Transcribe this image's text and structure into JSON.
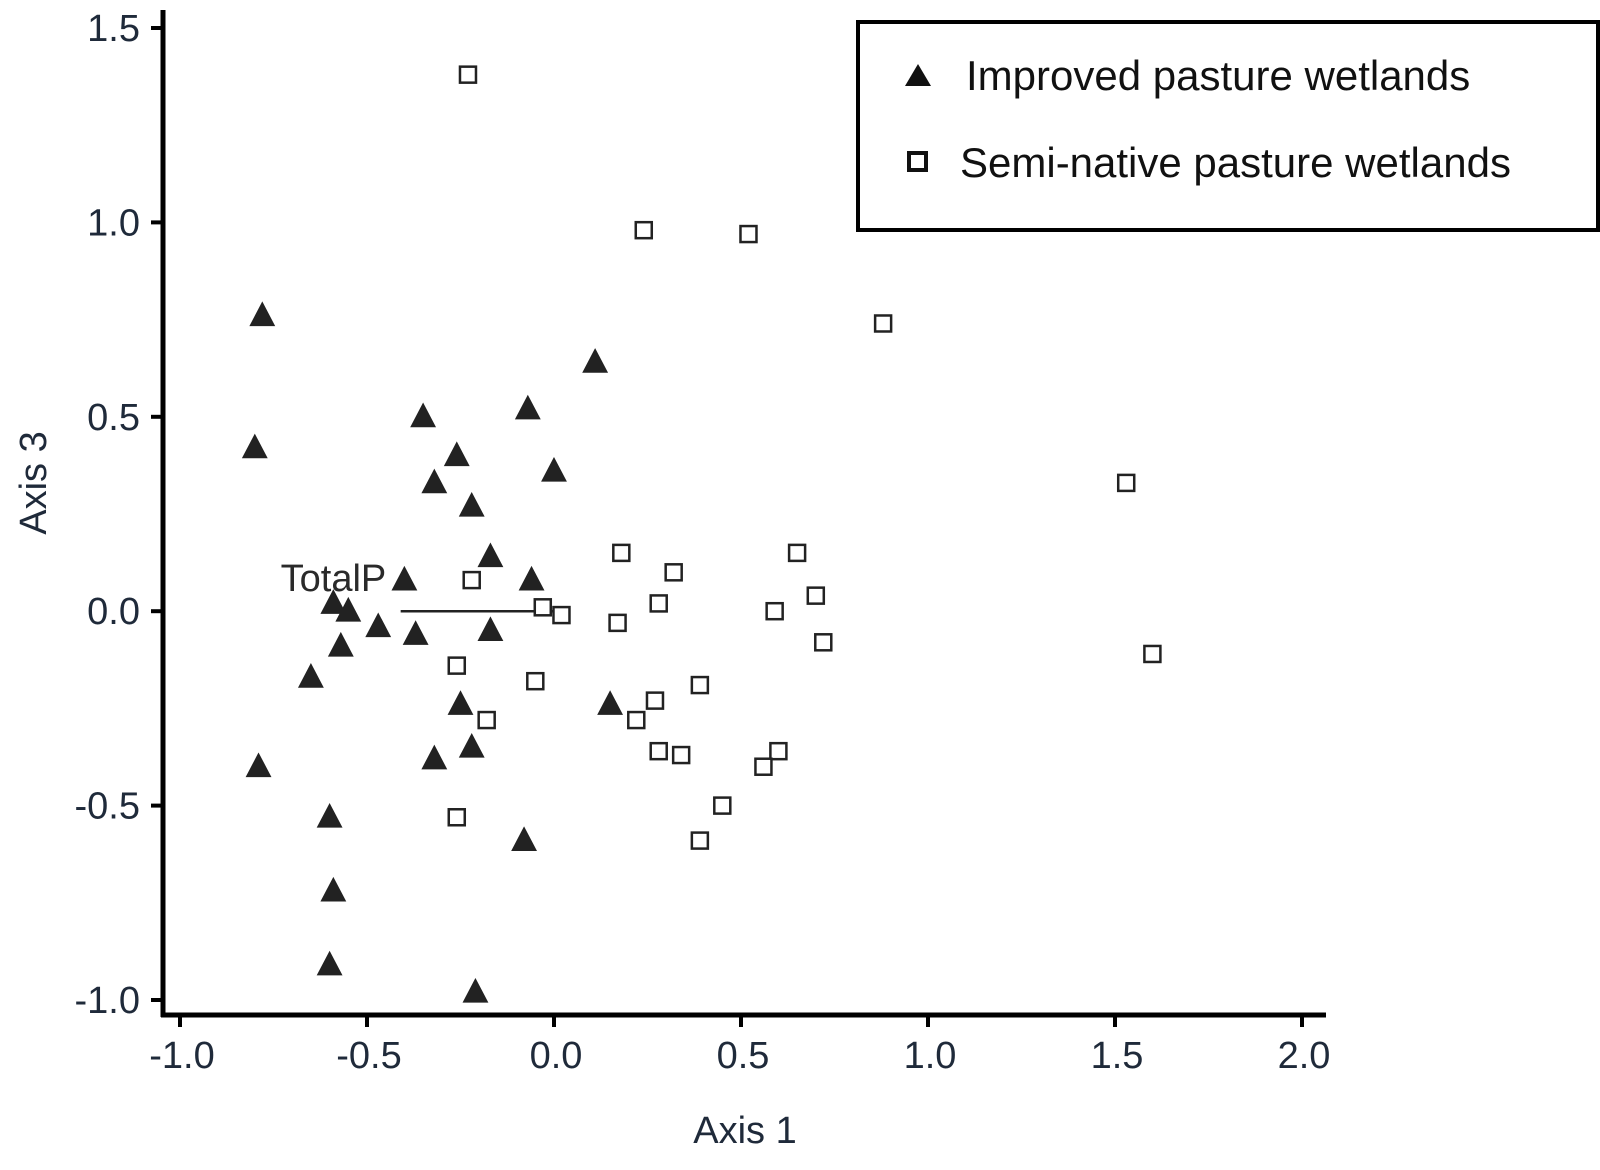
{
  "chart_data": {
    "type": "scatter",
    "title": "",
    "xlabel": "Axis 1",
    "ylabel": "Axis 3",
    "xlim": [
      -1.0,
      2.0
    ],
    "ylim": [
      -1.0,
      1.5
    ],
    "xticks": [
      "-1.0",
      "-0.5",
      "0.0",
      "0.5",
      "1.0",
      "1.5",
      "2.0"
    ],
    "yticks": [
      "-1.0",
      "-0.5",
      "0.0",
      "0.5",
      "1.0",
      "1.5"
    ],
    "xtick_values": [
      -1.0,
      -0.5,
      0.0,
      0.5,
      1.0,
      1.5,
      2.0
    ],
    "ytick_values": [
      -1.0,
      -0.5,
      0.0,
      0.5,
      1.0,
      1.5
    ],
    "grid": false,
    "legend_position": "top-right",
    "vector": {
      "label": "TotalP",
      "from": [
        0.0,
        0.0
      ],
      "to": [
        -0.41,
        0.0
      ]
    },
    "series": [
      {
        "name": "Improved pasture wetlands",
        "marker": "triangle-filled",
        "color": "#222222",
        "points": [
          [
            -0.78,
            0.76
          ],
          [
            -0.8,
            0.42
          ],
          [
            0.11,
            0.64
          ],
          [
            -0.07,
            0.52
          ],
          [
            -0.35,
            0.5
          ],
          [
            -0.26,
            0.4
          ],
          [
            0.0,
            0.36
          ],
          [
            -0.32,
            0.33
          ],
          [
            -0.22,
            0.27
          ],
          [
            -0.17,
            0.14
          ],
          [
            -0.4,
            0.08
          ],
          [
            -0.06,
            0.08
          ],
          [
            -0.59,
            0.02
          ],
          [
            -0.55,
            0.0
          ],
          [
            -0.47,
            -0.04
          ],
          [
            -0.37,
            -0.06
          ],
          [
            -0.17,
            -0.05
          ],
          [
            -0.57,
            -0.09
          ],
          [
            -0.65,
            -0.17
          ],
          [
            -0.25,
            -0.24
          ],
          [
            0.15,
            -0.24
          ],
          [
            -0.22,
            -0.35
          ],
          [
            -0.32,
            -0.38
          ],
          [
            -0.79,
            -0.4
          ],
          [
            -0.6,
            -0.53
          ],
          [
            -0.08,
            -0.59
          ],
          [
            -0.59,
            -0.72
          ],
          [
            -0.6,
            -0.91
          ],
          [
            -0.21,
            -0.98
          ]
        ]
      },
      {
        "name": "Semi-native pasture wetlands",
        "marker": "square-open",
        "color": "#222222",
        "points": [
          [
            -0.23,
            1.38
          ],
          [
            0.24,
            0.98
          ],
          [
            0.52,
            0.97
          ],
          [
            0.88,
            0.74
          ],
          [
            1.53,
            0.33
          ],
          [
            0.18,
            0.15
          ],
          [
            0.65,
            0.15
          ],
          [
            0.32,
            0.1
          ],
          [
            -0.22,
            0.08
          ],
          [
            0.28,
            0.02
          ],
          [
            0.7,
            0.04
          ],
          [
            -0.03,
            0.01
          ],
          [
            0.02,
            -0.01
          ],
          [
            0.59,
            0.0
          ],
          [
            0.17,
            -0.03
          ],
          [
            0.72,
            -0.08
          ],
          [
            1.6,
            -0.11
          ],
          [
            -0.26,
            -0.14
          ],
          [
            -0.05,
            -0.18
          ],
          [
            0.39,
            -0.19
          ],
          [
            0.27,
            -0.23
          ],
          [
            -0.18,
            -0.28
          ],
          [
            0.22,
            -0.28
          ],
          [
            0.28,
            -0.36
          ],
          [
            0.34,
            -0.37
          ],
          [
            0.6,
            -0.36
          ],
          [
            0.56,
            -0.4
          ],
          [
            0.45,
            -0.5
          ],
          [
            -0.26,
            -0.53
          ],
          [
            0.39,
            -0.59
          ]
        ]
      }
    ]
  }
}
